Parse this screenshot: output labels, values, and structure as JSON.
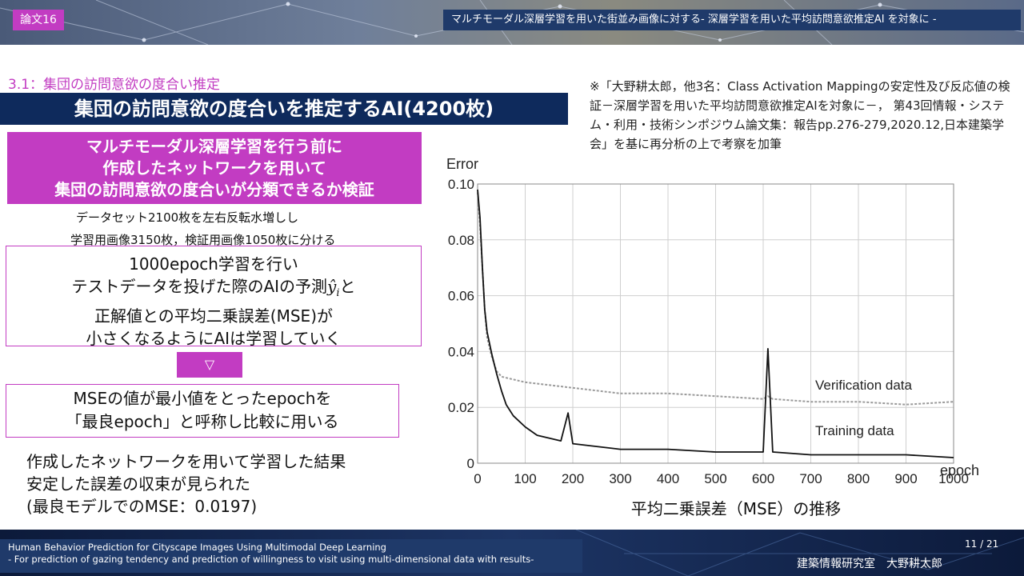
{
  "header": {
    "tag": "論文16",
    "series_title": "マルチモーダル深層学習を用いた街並み画像に対する- 深層学習を用いた平均訪問意欲推定AI を対象に -"
  },
  "section_label": "3.1：集団の訪問意欲の度合い推定",
  "main_title": "集団の訪問意欲の度合いを推定するAI(4200枚)",
  "citation": "※「大野耕太郎，他3名：Class Activation Mappingの安定性及び反応値の検証－深層学習を用いた平均訪問意欲推定AIを対象に－， 第43回情報・システム・利用・技術シンポジウム論文集：報告pp.276-279,2020.12,日本建築学会」を基に再分析の上で考察を加筆",
  "purpose_box": {
    "lines": [
      "マルチモーダル深層学習を行う前に",
      "作成したネットワークを用いて",
      "集団の訪問意欲の度合いが分類できるか検証"
    ]
  },
  "dataset": {
    "line1": "データセット2100枚を左右反転水増しし",
    "line2": "学習用画像3150枚，検証用画像1050枚に分ける"
  },
  "method_box": {
    "lines": [
      "1000epoch学習を行い",
      "テストデータを投げた際のAIの予測",
      "正解値との平均二乗誤差(MSE)が",
      "小さくなるようにAIは学習していく"
    ],
    "symbol": "ŷ",
    "symbol_sub": "i",
    "line2_suffix": "と"
  },
  "arrow_glyph": "▽",
  "epoch_box": {
    "lines": [
      "MSEの値が最小値をとったepochを",
      "「最良epoch」と呼称し比較に用いる"
    ]
  },
  "result": {
    "lines": [
      "作成したネットワークを用いて学習した結果",
      "安定した誤差の収束が見られた",
      "(最良モデルでのMSE：0.0197)"
    ]
  },
  "chart_data": {
    "type": "line",
    "title": "平均二乗誤差（MSE）の推移",
    "ylabel": "Error",
    "xlabel": "epoch",
    "xlim": [
      0,
      1000
    ],
    "ylim": [
      0,
      0.1
    ],
    "x_ticks": [
      "0",
      "100",
      "200",
      "300",
      "400",
      "500",
      "600",
      "700",
      "800",
      "900",
      "1000"
    ],
    "y_ticks": [
      "0",
      "0.02",
      "0.04",
      "0.06",
      "0.08",
      "0.10"
    ],
    "grid": true,
    "series": [
      {
        "name": "Verification data",
        "style": "dotted",
        "color": "#9a9a9a",
        "x": [
          0,
          5,
          10,
          15,
          20,
          30,
          40,
          50,
          75,
          100,
          150,
          200,
          300,
          400,
          500,
          600,
          610,
          620,
          700,
          800,
          900,
          1000
        ],
        "y": [
          0.097,
          0.085,
          0.07,
          0.055,
          0.045,
          0.038,
          0.033,
          0.031,
          0.03,
          0.029,
          0.028,
          0.027,
          0.025,
          0.025,
          0.024,
          0.023,
          0.024,
          0.023,
          0.022,
          0.022,
          0.021,
          0.022
        ]
      },
      {
        "name": "Training data",
        "style": "solid",
        "color": "#111111",
        "x": [
          0,
          5,
          10,
          15,
          20,
          30,
          40,
          50,
          60,
          75,
          100,
          125,
          150,
          175,
          190,
          200,
          250,
          300,
          400,
          500,
          600,
          610,
          620,
          700,
          800,
          900,
          1000
        ],
        "y": [
          0.098,
          0.088,
          0.07,
          0.055,
          0.047,
          0.039,
          0.032,
          0.026,
          0.021,
          0.017,
          0.013,
          0.01,
          0.009,
          0.008,
          0.018,
          0.007,
          0.006,
          0.005,
          0.005,
          0.004,
          0.004,
          0.041,
          0.004,
          0.003,
          0.003,
          0.003,
          0.002
        ]
      }
    ]
  },
  "footer": {
    "en_line1": "Human Behavior Prediction for Cityscape Images Using Multimodal Deep Learning",
    "en_line2": "- For prediction of gazing tendency and prediction of willingness to visit using multi-dimensional data with results-",
    "page": "11 / 21",
    "author": "建築情報研究室　大野耕太郎"
  }
}
